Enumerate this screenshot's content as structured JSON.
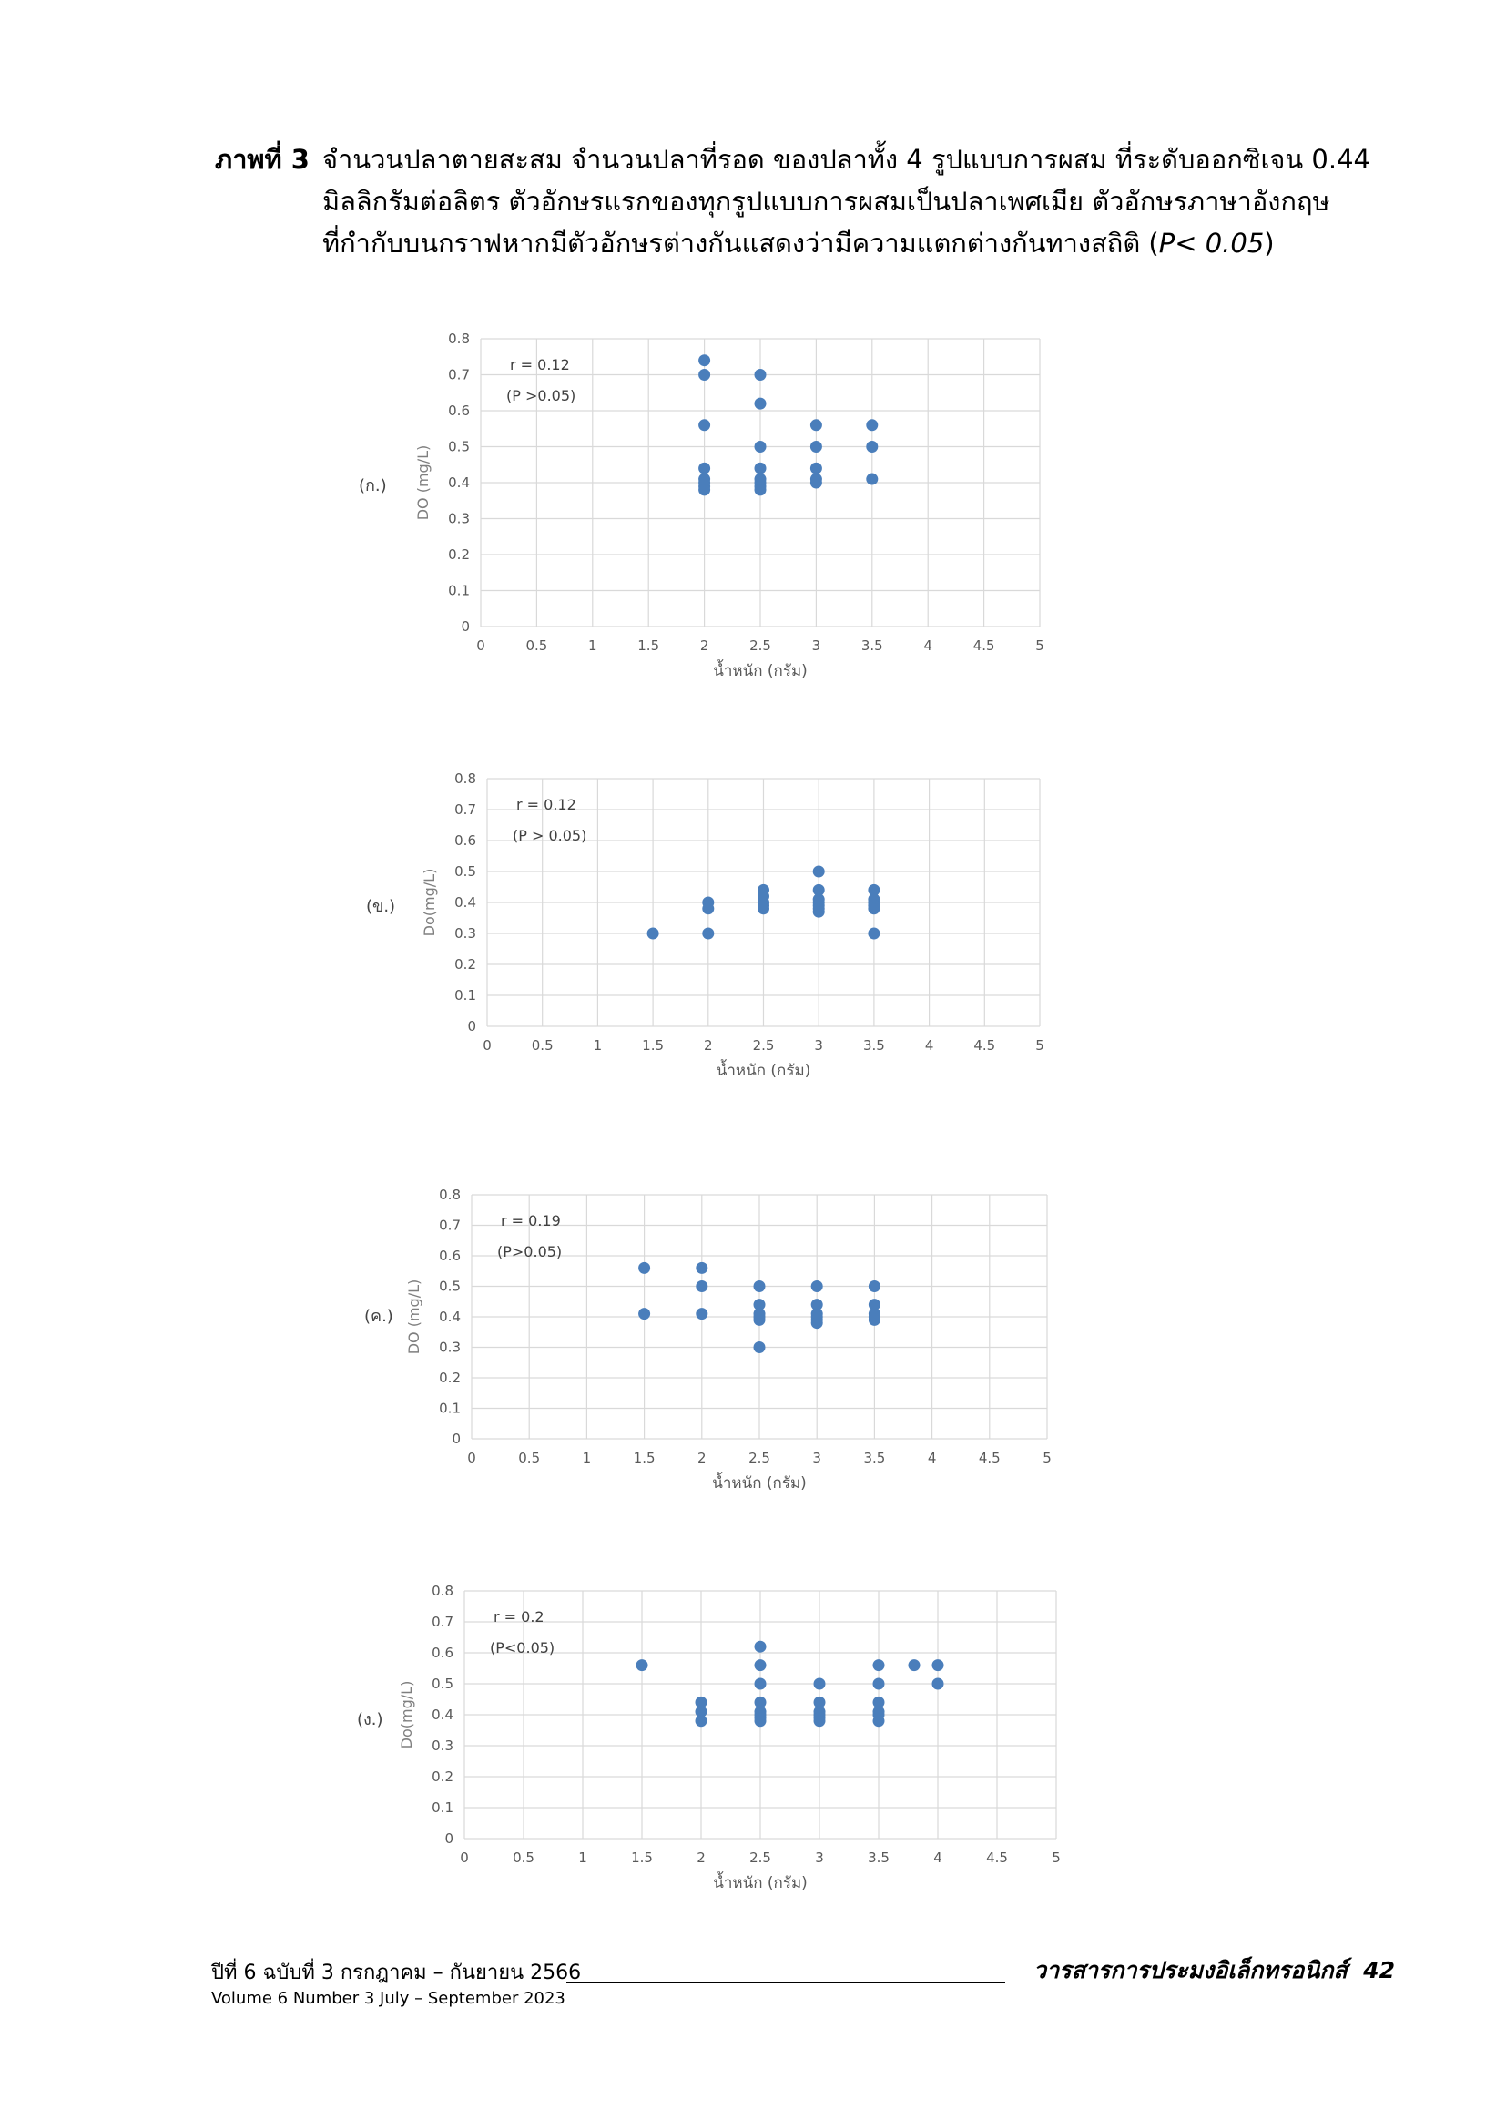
{
  "caption": {
    "label": "ภาพที่ 3",
    "line1": "จำนวนปลาตายสะสม จำนวนปลาที่รอด ของปลาทั้ง 4 รูปแบบการผสม ที่ระดับออกซิเจน 0.44",
    "line2": "มิลลิกรัมต่อลิตร ตัวอักษรแรกของทุกรูปแบบการผสมเป็นปลาเพศเมีย  ตัวอักษรภาษาอังกฤษ",
    "line3_text": "ที่กำกับบนกราฟหากมีตัวอักษรต่างกันแสดงว่ามีความแตกต่างกันทางสถิติ (",
    "line3_p": "P< 0.05",
    "line3_close": ")"
  },
  "chart_data": [
    {
      "type": "scatter",
      "panel": "(ก.)",
      "xlabel": "น้ำหนัก (กรัม)",
      "ylabel": "DO (mg/L)",
      "xlim": [
        0,
        5
      ],
      "ylim": [
        0,
        0.8
      ],
      "xticks": [
        "0",
        "0.5",
        "1",
        "1.5",
        "2",
        "2.5",
        "3",
        "3.5",
        "4",
        "4.5",
        "5"
      ],
      "yticks": [
        "0",
        "0.1",
        "0.2",
        "0.3",
        "0.4",
        "0.5",
        "0.6",
        "0.7",
        "0.8"
      ],
      "grid": true,
      "annotation_r": "r = 0.12",
      "annotation_p": "(P >0.05)",
      "color": "#4a7ebb",
      "points": [
        [
          2,
          0.74
        ],
        [
          2,
          0.7
        ],
        [
          2,
          0.56
        ],
        [
          2,
          0.44
        ],
        [
          2,
          0.41
        ],
        [
          2,
          0.4
        ],
        [
          2,
          0.39
        ],
        [
          2,
          0.38
        ],
        [
          2.5,
          0.7
        ],
        [
          2.5,
          0.62
        ],
        [
          2.5,
          0.5
        ],
        [
          2.5,
          0.44
        ],
        [
          2.5,
          0.41
        ],
        [
          2.5,
          0.4
        ],
        [
          2.5,
          0.39
        ],
        [
          2.5,
          0.38
        ],
        [
          3,
          0.56
        ],
        [
          3,
          0.5
        ],
        [
          3,
          0.44
        ],
        [
          3,
          0.41
        ],
        [
          3,
          0.4
        ],
        [
          3.5,
          0.56
        ],
        [
          3.5,
          0.5
        ],
        [
          3.5,
          0.41
        ]
      ]
    },
    {
      "type": "scatter",
      "panel": "(ข.)",
      "xlabel": "น้ำหนัก (กรัม)",
      "ylabel": "Do(mg/L)",
      "xlim": [
        0,
        5
      ],
      "ylim": [
        0,
        0.8
      ],
      "xticks": [
        "0",
        "0.5",
        "1",
        "1.5",
        "2",
        "2.5",
        "3",
        "3.5",
        "4",
        "4.5",
        "5"
      ],
      "yticks": [
        "0",
        "0.1",
        "0.2",
        "0.3",
        "0.4",
        "0.5",
        "0.6",
        "0.7",
        "0.8"
      ],
      "grid": true,
      "annotation_r": "r = 0.12",
      "annotation_p": "(P > 0.05)",
      "color": "#4a7ebb",
      "points": [
        [
          1.5,
          0.3
        ],
        [
          2,
          0.4
        ],
        [
          2,
          0.38
        ],
        [
          2,
          0.3
        ],
        [
          2.5,
          0.44
        ],
        [
          2.5,
          0.42
        ],
        [
          2.5,
          0.4
        ],
        [
          2.5,
          0.39
        ],
        [
          2.5,
          0.38
        ],
        [
          3,
          0.5
        ],
        [
          3,
          0.44
        ],
        [
          3,
          0.41
        ],
        [
          3,
          0.4
        ],
        [
          3,
          0.39
        ],
        [
          3,
          0.38
        ],
        [
          3,
          0.37
        ],
        [
          3.5,
          0.44
        ],
        [
          3.5,
          0.41
        ],
        [
          3.5,
          0.4
        ],
        [
          3.5,
          0.39
        ],
        [
          3.5,
          0.38
        ],
        [
          3.5,
          0.3
        ]
      ]
    },
    {
      "type": "scatter",
      "panel": "(ค.)",
      "xlabel": "น้ำหนัก (กรัม)",
      "ylabel": "DO (mg/L)",
      "xlim": [
        0,
        5
      ],
      "ylim": [
        0,
        0.8
      ],
      "xticks": [
        "0",
        "0.5",
        "1",
        "1.5",
        "2",
        "2.5",
        "3",
        "3.5",
        "4",
        "4.5",
        "5"
      ],
      "yticks": [
        "0",
        "0.1",
        "0.2",
        "0.3",
        "0.4",
        "0.5",
        "0.6",
        "0.7",
        "0.8"
      ],
      "grid": true,
      "annotation_r": "r =   0.19",
      "annotation_p": "(P>0.05)",
      "color": "#4a7ebb",
      "points": [
        [
          1.5,
          0.56
        ],
        [
          1.5,
          0.41
        ],
        [
          2,
          0.56
        ],
        [
          2,
          0.5
        ],
        [
          2,
          0.41
        ],
        [
          2.5,
          0.5
        ],
        [
          2.5,
          0.44
        ],
        [
          2.5,
          0.41
        ],
        [
          2.5,
          0.4
        ],
        [
          2.5,
          0.39
        ],
        [
          2.5,
          0.3
        ],
        [
          3,
          0.5
        ],
        [
          3,
          0.44
        ],
        [
          3,
          0.41
        ],
        [
          3,
          0.4
        ],
        [
          3,
          0.39
        ],
        [
          3,
          0.38
        ],
        [
          3.5,
          0.5
        ],
        [
          3.5,
          0.44
        ],
        [
          3.5,
          0.41
        ],
        [
          3.5,
          0.4
        ],
        [
          3.5,
          0.39
        ]
      ]
    },
    {
      "type": "scatter",
      "panel": "(ง.)",
      "xlabel": "น้ำหนัก (กรัม)",
      "ylabel": "Do(mg/L)",
      "xlim": [
        0,
        5
      ],
      "ylim": [
        0,
        0.8
      ],
      "xticks": [
        "0",
        "0.5",
        "1",
        "1.5",
        "2",
        "2.5",
        "3",
        "3.5",
        "4",
        "4.5",
        "5"
      ],
      "yticks": [
        "0",
        "0.1",
        "0.2",
        "0.3",
        "0.4",
        "0.5",
        "0.6",
        "0.7",
        "0.8"
      ],
      "grid": true,
      "annotation_r": "r =  0.2",
      "annotation_p": "(P<0.05)",
      "color": "#4a7ebb",
      "points": [
        [
          1.5,
          0.56
        ],
        [
          2,
          0.44
        ],
        [
          2,
          0.41
        ],
        [
          2,
          0.38
        ],
        [
          2.5,
          0.62
        ],
        [
          2.5,
          0.56
        ],
        [
          2.5,
          0.5
        ],
        [
          2.5,
          0.44
        ],
        [
          2.5,
          0.41
        ],
        [
          2.5,
          0.4
        ],
        [
          2.5,
          0.39
        ],
        [
          2.5,
          0.38
        ],
        [
          3,
          0.5
        ],
        [
          3,
          0.44
        ],
        [
          3,
          0.41
        ],
        [
          3,
          0.4
        ],
        [
          3,
          0.39
        ],
        [
          3,
          0.38
        ],
        [
          3.5,
          0.56
        ],
        [
          3.5,
          0.5
        ],
        [
          3.5,
          0.44
        ],
        [
          3.5,
          0.41
        ],
        [
          3.5,
          0.4
        ],
        [
          3.5,
          0.38
        ],
        [
          3.8,
          0.56
        ],
        [
          4,
          0.56
        ],
        [
          4,
          0.5
        ]
      ]
    }
  ],
  "footer": {
    "issue_th": "ปีที่ 6 ฉบับที่ 3 กรกฎาคม – กันยายน 2566",
    "issue_en": "Volume 6 Number 3 July – September 2023",
    "journal": "วารสารการประมงอิเล็กทรอนิกส์",
    "page": "42"
  }
}
